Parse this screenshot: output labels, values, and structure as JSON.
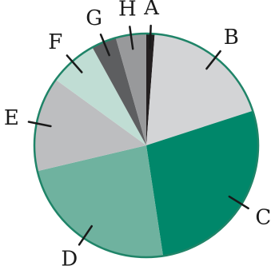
{
  "chart_data": {
    "type": "pie",
    "title": "",
    "legend": "none",
    "start": "top",
    "direction": "clockwise",
    "slices": [
      {
        "label": "A",
        "value": 1.2,
        "color": "#231f20"
      },
      {
        "label": "B",
        "value": 18.8,
        "color": "#d3d4d6"
      },
      {
        "label": "C",
        "value": 27.6,
        "color": "#00876a"
      },
      {
        "label": "D",
        "value": 23.7,
        "color": "#6fb29f"
      },
      {
        "label": "E",
        "value": 13.7,
        "color": "#bdbec0"
      },
      {
        "label": "F",
        "value": 7.0,
        "color": "#c0ddd4"
      },
      {
        "label": "G",
        "value": 3.6,
        "color": "#5d5e60"
      },
      {
        "label": "H",
        "value": 4.4,
        "color": "#98999b"
      }
    ],
    "outline_color": "#1f8468"
  }
}
